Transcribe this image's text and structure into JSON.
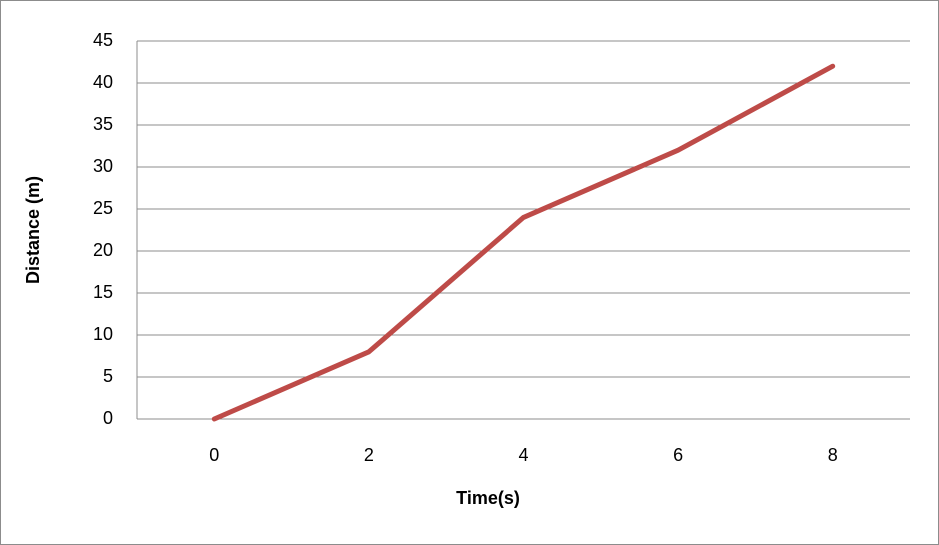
{
  "chart_data": {
    "type": "line",
    "x_label": "Time(s)",
    "y_label": "Distance (m)",
    "categories": [
      "0",
      "2",
      "4",
      "6",
      "8"
    ],
    "values": [
      0,
      8,
      24,
      32,
      42
    ],
    "color": "#be4b48",
    "ylim": [
      0,
      45
    ],
    "yticks": [
      0,
      5,
      10,
      15,
      20,
      25,
      30,
      35,
      40,
      45
    ],
    "grid": true
  }
}
